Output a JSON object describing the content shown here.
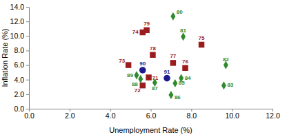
{
  "chart_data": {
    "type": "scatter",
    "x_label": "Unemployment Rate (%)",
    "y_label": "Inflation Rate (%)",
    "xlim": [
      0,
      12
    ],
    "xticks": [
      {
        "value": 0,
        "label": "0.0"
      },
      {
        "value": 2,
        "label": "2.0"
      },
      {
        "value": 4,
        "label": "4.0"
      },
      {
        "value": 6,
        "label": "6.0"
      },
      {
        "value": 8,
        "label": "8.0"
      },
      {
        "value": 10,
        "label": "10.0"
      },
      {
        "value": 12,
        "label": "12.0"
      }
    ],
    "ylim": [
      0,
      14
    ],
    "yticks": [
      {
        "value": 0,
        "label": "0.0"
      },
      {
        "value": 2,
        "label": "2.0"
      },
      {
        "value": 4,
        "label": "4.0"
      },
      {
        "value": 6,
        "label": "6.0"
      },
      {
        "value": 8,
        "label": "8.0"
      },
      {
        "value": 10,
        "label": "10.0"
      },
      {
        "value": 12,
        "label": "12.0"
      },
      {
        "value": 14,
        "label": "14.0"
      }
    ],
    "grid": false,
    "series": [
      {
        "color": "#9b1c1c",
        "marker": "square",
        "labels": [
          "71",
          "72",
          "73",
          "74",
          "75",
          "76",
          "77",
          "78",
          "79"
        ],
        "x": [
          5.9,
          5.6,
          4.9,
          5.6,
          8.5,
          7.7,
          7.1,
          6.1,
          5.8
        ],
        "values": [
          4.3,
          3.2,
          6.0,
          10.5,
          8.8,
          5.6,
          6.3,
          7.4,
          10.8
        ]
      },
      {
        "color": "#2e8b2e",
        "marker": "diamond",
        "labels": [
          "80",
          "81",
          "82",
          "83",
          "84",
          "85",
          "86",
          "87",
          "88",
          "89"
        ],
        "x": [
          7.1,
          7.6,
          9.7,
          9.6,
          7.5,
          7.2,
          7.0,
          6.2,
          5.5,
          5.3
        ],
        "values": [
          12.7,
          9.9,
          6.0,
          3.2,
          4.2,
          3.5,
          1.9,
          3.6,
          4.1,
          4.6
        ]
      },
      {
        "color": "#1a1a8c",
        "marker": "circle",
        "labels": [
          "90",
          "91"
        ],
        "x": [
          5.6,
          6.8
        ],
        "values": [
          5.3,
          4.2
        ]
      }
    ]
  }
}
